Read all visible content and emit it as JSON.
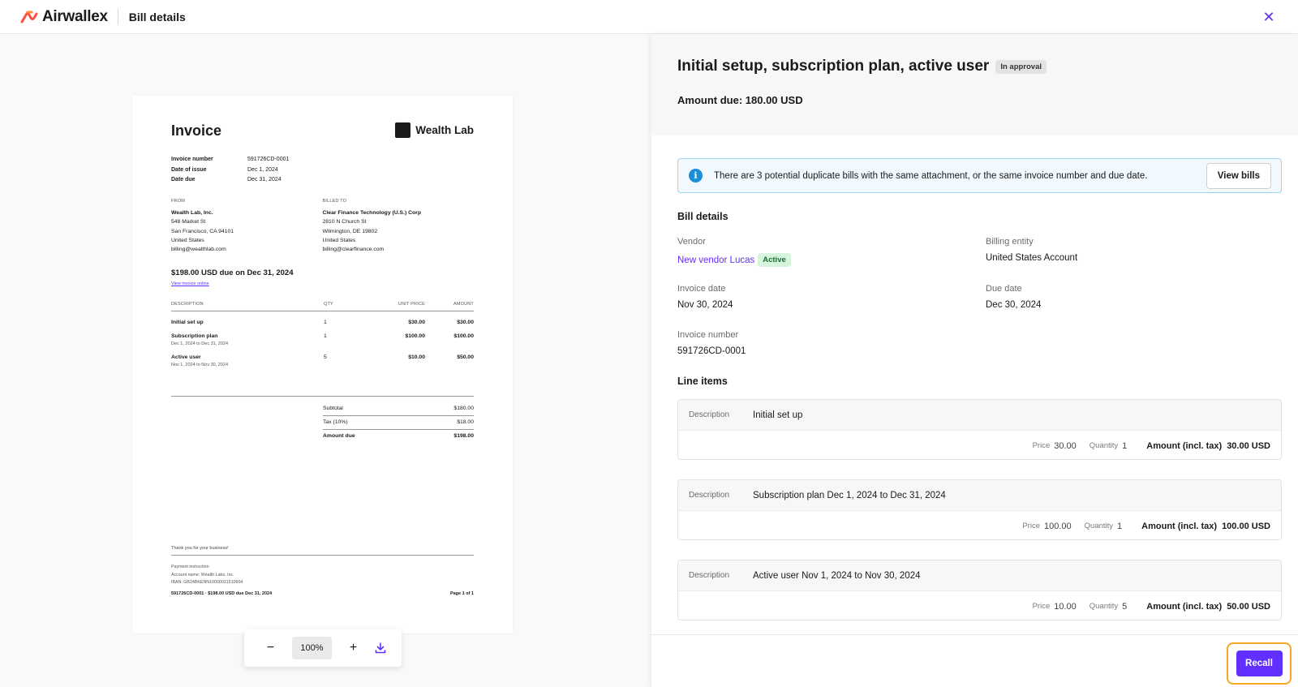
{
  "header": {
    "brand": "Airwallex",
    "title": "Bill details"
  },
  "invoice": {
    "title": "Invoice",
    "brand": "Wealth Lab",
    "meta": [
      {
        "label": "Invoice number",
        "value": "591726CD-0001"
      },
      {
        "label": "Date of issue",
        "value": "Dec 1, 2024"
      },
      {
        "label": "Date due",
        "value": "Dec 31, 2024"
      }
    ],
    "from": {
      "label": "FROM",
      "name": "Wealth Lab, Inc.",
      "line1": "548 Market St",
      "line2": "San Francisco, CA 94101",
      "line3": "United States",
      "email": "billing@wealthlab.com"
    },
    "billed_to": {
      "label": "BILLED TO",
      "name": "Clear Finance Technology (U.S.) Corp",
      "line1": "2810 N Church St",
      "line2": "Wilmington, DE 19802",
      "line3": "United States",
      "email": "billing@clearfinance.com"
    },
    "due_line": "$198.00 USD due on Dec 31, 2024",
    "view_online": "View invoice online",
    "table_headers": {
      "description": "DESCRIPTION",
      "qty": "QTY",
      "unit_price": "UNIT PRICE",
      "amount": "AMOUNT"
    },
    "rows": [
      {
        "desc": "Initial set up",
        "sub": "",
        "qty": "1",
        "unit": "$30.00",
        "amount": "$30.00"
      },
      {
        "desc": "Subscription plan",
        "sub": "Dec 1, 2024 to Dec 31, 2024",
        "qty": "1",
        "unit": "$100.00",
        "amount": "$100.00"
      },
      {
        "desc": "Active user",
        "sub": "Nov 1, 2024 to Nov 30, 2024",
        "qty": "5",
        "unit": "$10.00",
        "amount": "$50.00"
      }
    ],
    "totals": [
      {
        "label": "Subtotal",
        "value": "$180.00"
      },
      {
        "label": "Tax (10%)",
        "value": "$18.00"
      },
      {
        "label": "Amount due",
        "value": "$198.00"
      }
    ],
    "thanks": "Thank you for your business!",
    "payment": {
      "label": "Payment instruction",
      "account": "Account name: Wealth Labs, Inc.",
      "iban": "IBAN: GB24BKENN10000031510604"
    },
    "footer_left": "591726CD-0001 · $198.00 USD due Dec 31, 2024",
    "footer_right": "Page 1 of 1"
  },
  "zoom": {
    "minus": "−",
    "value": "100%",
    "plus": "+"
  },
  "panel": {
    "title": "Initial setup, subscription plan, active user",
    "status": "In approval",
    "amount_due": "Amount due: 180.00 USD",
    "alert": {
      "text": "There are 3 potential duplicate bills with the same attachment, or the same invoice number and due date.",
      "button": "View bills"
    },
    "bill_details": {
      "title": "Bill details",
      "vendor_label": "Vendor",
      "vendor_value": "New vendor Lucas",
      "vendor_status": "Active",
      "billing_entity_label": "Billing entity",
      "billing_entity_value": "United States Account",
      "invoice_date_label": "Invoice date",
      "invoice_date_value": "Nov 30, 2024",
      "due_date_label": "Due date",
      "due_date_value": "Dec 30, 2024",
      "invoice_number_label": "Invoice number",
      "invoice_number_value": "591726CD-0001"
    },
    "line_items": {
      "title": "Line items",
      "desc_label": "Description",
      "price_label": "Price",
      "qty_label": "Quantity",
      "amount_label": "Amount (incl. tax)",
      "items": [
        {
          "desc": "Initial set up",
          "price": "30.00",
          "qty": "1",
          "amount": "30.00 USD"
        },
        {
          "desc": "Subscription plan Dec 1, 2024 to Dec 31, 2024",
          "price": "100.00",
          "qty": "1",
          "amount": "100.00 USD"
        },
        {
          "desc": "Active user Nov 1, 2024 to Nov 30, 2024",
          "price": "10.00",
          "qty": "5",
          "amount": "50.00 USD"
        }
      ]
    },
    "recall": "Recall"
  },
  "colors": {
    "accent": "#612fff",
    "highlight": "#f5a623",
    "info": "#1a8fd8",
    "active_bg": "#d7f4dd"
  }
}
